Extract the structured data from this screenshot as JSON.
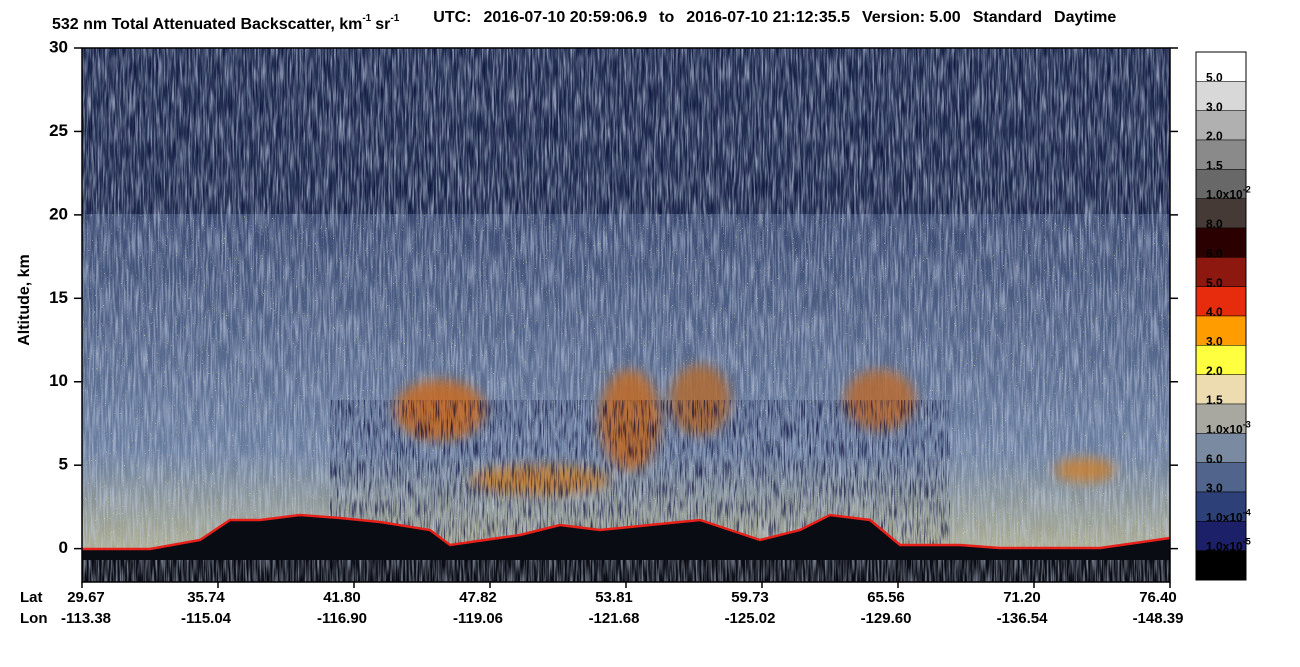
{
  "chart_data": {
    "type": "heatmap",
    "title": [
      "532 nm Total Attenuated Backscatter, km",
      "-1",
      "sr",
      "-1"
    ],
    "subtitle": [
      "UTC:",
      "2016-07-10 20:59:06.9",
      "to",
      "2016-07-10 21:12:35.5",
      "Version: 5.00",
      "Standard",
      "Daytime"
    ],
    "ylabel": "Altitude, km",
    "ylim": [
      -2,
      30
    ],
    "yticks": [
      0,
      5,
      10,
      15,
      20,
      25,
      30
    ],
    "x_row_labels": [
      "Lat",
      "Lon"
    ],
    "lat": [
      "29.67",
      "35.74",
      "41.80",
      "47.82",
      "53.81",
      "59.73",
      "65.56",
      "71.20",
      "76.40"
    ],
    "lon": [
      "-113.38",
      "-115.04",
      "-116.90",
      "-119.06",
      "-121.68",
      "-125.02",
      "-129.60",
      "-136.54",
      "-148.39"
    ],
    "colorbar": {
      "colors": [
        "#ffffff",
        "#d8d8d8",
        "#b0b0b0",
        "#8a8a8a",
        "#686868",
        "#463a36",
        "#2a0000",
        "#8c1810",
        "#e62c0c",
        "#ff9c00",
        "#ffff40",
        "#ecdcb0",
        "#a8a8a0",
        "#7a8aa0",
        "#50648c",
        "#2e4078",
        "#1c2068",
        "#000000"
      ],
      "labels": [
        "5.0",
        "3.0",
        "2.0",
        "1.5",
        {
          "base": "1.0x10",
          "exp": "-2"
        },
        "8.0",
        "6.0",
        "5.0",
        "4.0",
        "3.0",
        "2.0",
        "1.5",
        {
          "base": "1.0x10",
          "exp": "-3"
        },
        "6.0",
        "3.0",
        {
          "base": "1.0x10",
          "exp": "-4"
        },
        {
          "base": "1.0x10",
          "exp": "-5"
        }
      ]
    }
  }
}
